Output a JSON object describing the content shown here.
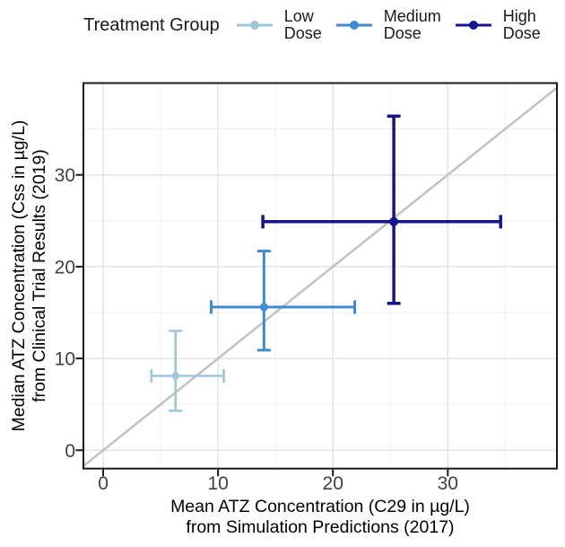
{
  "legend": {
    "title": "Treatment Group",
    "items": [
      {
        "label": "Low\nDose"
      },
      {
        "label": "Medium\nDose"
      },
      {
        "label": "High\nDose"
      }
    ]
  },
  "chart_data": {
    "type": "scatter",
    "title": "",
    "xlabel": "Mean ATZ Concentration (C29 in µg/L)\nfrom Simulation Predictions (2017)",
    "ylabel": "Median ATZ Concentration (Css in µg/L)\nfrom Clinical Trial Results (2019)",
    "xlim": [
      -1.72,
      39.5
    ],
    "ylim": [
      -2,
      40
    ],
    "x_ticks": [
      0,
      10,
      20,
      30
    ],
    "y_ticks": [
      0,
      10,
      20,
      30
    ],
    "x_minor_ticks": [
      5,
      15,
      25,
      35
    ],
    "y_minor_ticks": [
      5,
      15,
      25,
      35
    ],
    "grid": true,
    "legend_position": "top",
    "identity_line": {
      "slope": 1,
      "intercept": 0,
      "color": "#c2c2c2",
      "width": 2.5
    },
    "series": [
      {
        "name": "Low Dose",
        "color": "#9fc5dd",
        "stroke_width": 2.6,
        "point_radius": 4.2,
        "points": [
          {
            "x": 6.3,
            "y": 8.1,
            "xmin": 4.2,
            "xmax": 10.5,
            "ymin": 4.3,
            "ymax": 13.0
          }
        ]
      },
      {
        "name": "Medium Dose",
        "color": "#418bd2",
        "stroke_width": 3.0,
        "point_radius": 4.6,
        "points": [
          {
            "x": 14.0,
            "y": 15.6,
            "xmin": 9.4,
            "xmax": 21.9,
            "ymin": 10.9,
            "ymax": 21.7
          }
        ]
      },
      {
        "name": "High Dose",
        "color": "#16168c",
        "stroke_width": 3.5,
        "point_radius": 5.0,
        "points": [
          {
            "x": 25.3,
            "y": 24.9,
            "xmin": 13.9,
            "xmax": 34.6,
            "ymin": 16.0,
            "ymax": 36.4
          }
        ]
      }
    ],
    "colors": {
      "grid_major": "#e4e4e4",
      "grid_minor": "#f0f0f0",
      "panel_border": "#1a1a1a",
      "tick_mark": "#1a1a1a",
      "tick_label": "#404040",
      "axis_title": "#000000",
      "background": "#ffffff"
    }
  }
}
